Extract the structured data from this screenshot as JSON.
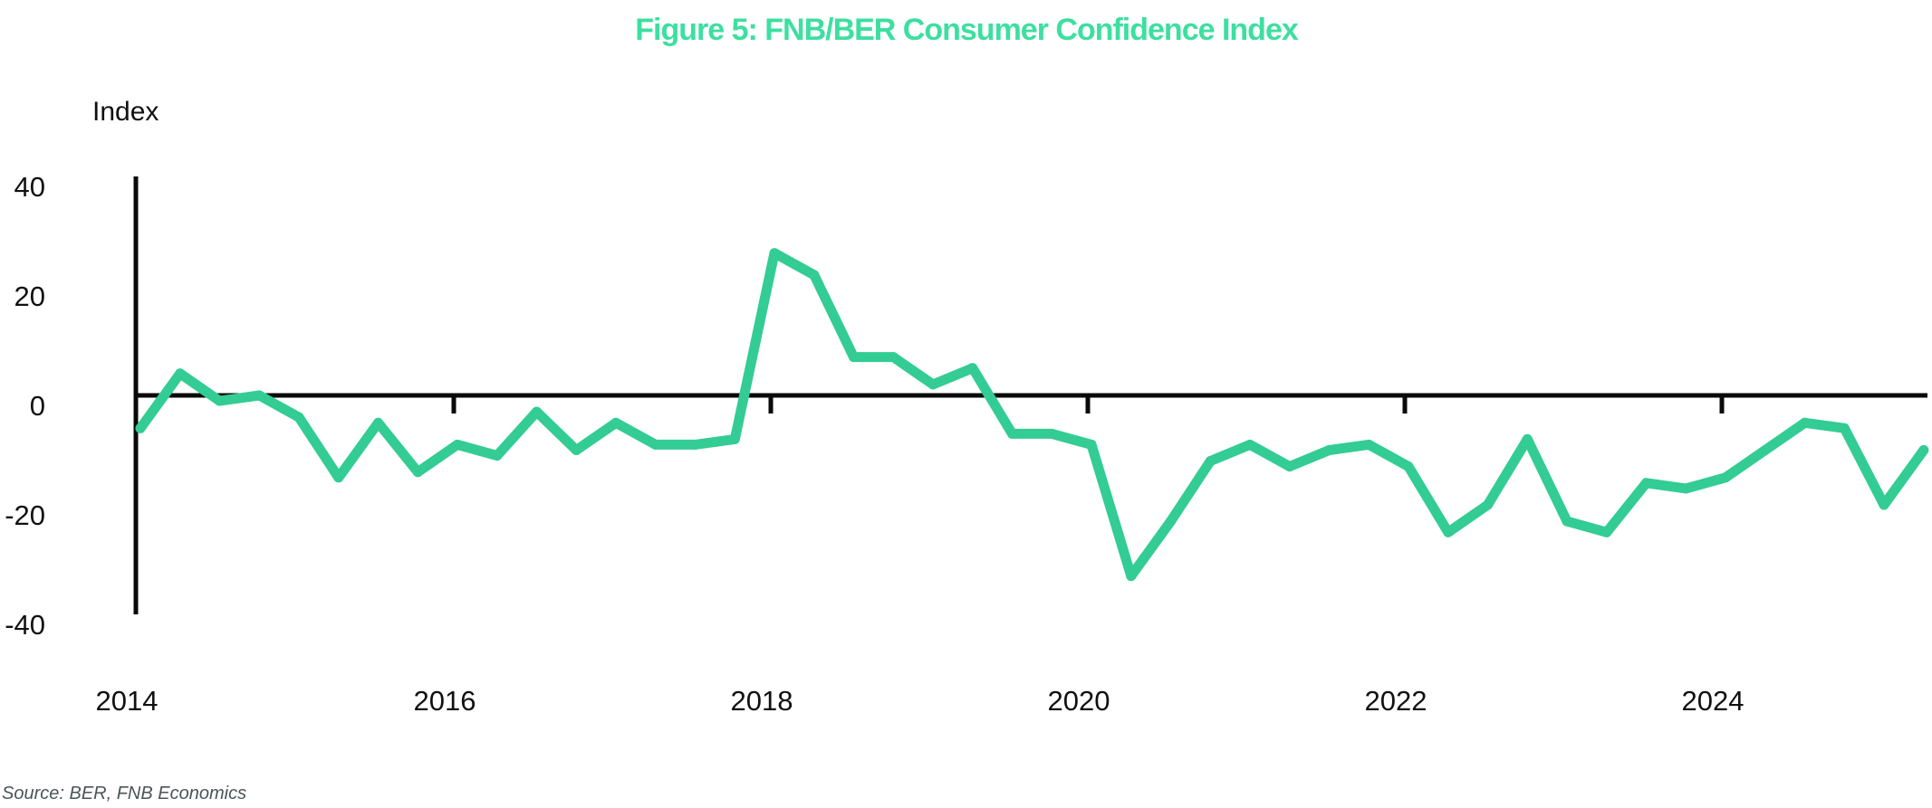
{
  "colors": {
    "title": "#3ddfa0",
    "series": "#33cc94",
    "axis": "#0a0a0a",
    "source": "#4a5556"
  },
  "chart_data": {
    "type": "line",
    "title": "Figure 5: FNB/BER Consumer Confidence Index",
    "ylabel": "Index",
    "xlabel": "",
    "source": "Source: BER, FNB Economics",
    "frequency": "quarterly",
    "ylim": [
      -40,
      40
    ],
    "yticks": [
      40,
      20,
      0,
      -20,
      -40
    ],
    "ytick_labels": [
      "40",
      "20",
      "0",
      "-20",
      "-40"
    ],
    "xlim": [
      "2014Q1",
      "2025Q2"
    ],
    "xticks": [
      "2014",
      "2016",
      "2018",
      "2020",
      "2022",
      "2024"
    ],
    "grid": false,
    "legend": "none",
    "x": [
      "2014Q1",
      "2014Q2",
      "2014Q3",
      "2014Q4",
      "2015Q1",
      "2015Q2",
      "2015Q3",
      "2015Q4",
      "2016Q1",
      "2016Q2",
      "2016Q3",
      "2016Q4",
      "2017Q1",
      "2017Q2",
      "2017Q3",
      "2017Q4",
      "2018Q1",
      "2018Q2",
      "2018Q3",
      "2018Q4",
      "2019Q1",
      "2019Q2",
      "2019Q3",
      "2019Q4",
      "2020Q1",
      "2020Q2",
      "2020Q3",
      "2020Q4",
      "2021Q1",
      "2021Q2",
      "2021Q3",
      "2021Q4",
      "2022Q1",
      "2022Q2",
      "2022Q3",
      "2022Q4",
      "2023Q1",
      "2023Q2",
      "2023Q3",
      "2023Q4",
      "2024Q1",
      "2024Q2",
      "2024Q3",
      "2024Q4",
      "2025Q1",
      "2025Q2"
    ],
    "series": [
      {
        "name": "FNB/BER Consumer Confidence Index",
        "values": [
          -6,
          4,
          -1,
          0,
          -4,
          -15,
          -5,
          -14,
          -9,
          -11,
          -3,
          -10,
          -5,
          -9,
          -9,
          -8,
          26,
          22,
          7,
          7,
          2,
          5,
          -7,
          -7,
          -9,
          -33,
          -23,
          -12,
          -9,
          -13,
          -10,
          -9,
          -13,
          -25,
          -20,
          -8,
          -23,
          -25,
          -16,
          -17,
          -15,
          -10,
          -5,
          -6,
          -20,
          -10
        ]
      }
    ]
  }
}
